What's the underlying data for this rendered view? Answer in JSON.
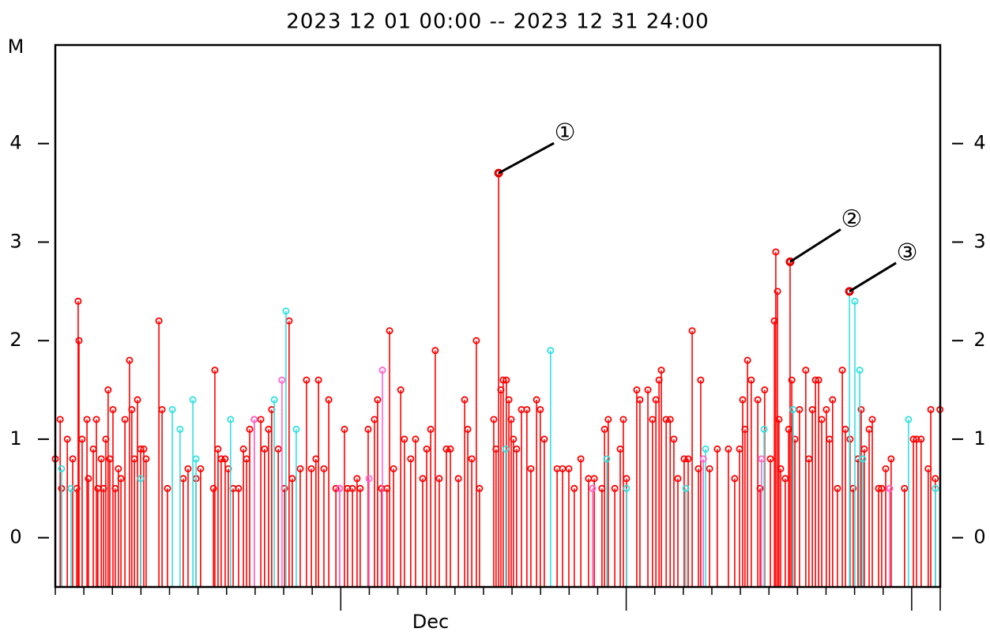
{
  "chart_data": {
    "type": "stem",
    "title": "2023 12 01 00:00 -- 2023 12 31 24:00",
    "y_label": "M",
    "x_label": "Dec",
    "xlim": [
      0,
      31
    ],
    "xticks": [
      0,
      1,
      2,
      3,
      4,
      5,
      6,
      7,
      8,
      9,
      10,
      11,
      12,
      13,
      14,
      15,
      16,
      17,
      18,
      19,
      20,
      21,
      22,
      23,
      24,
      25,
      26,
      27,
      28,
      29,
      30,
      31
    ],
    "ylim": [
      -0.5,
      5
    ],
    "yticks": [
      0,
      1,
      2,
      3,
      4
    ],
    "right_axis": true,
    "series": [
      {
        "color": "#ff0000",
        "x": [
          0.0,
          0.17,
          0.22,
          0.42,
          0.61,
          0.75,
          0.8,
          0.83,
          0.94,
          1.11,
          1.16,
          1.33,
          1.44,
          1.49,
          1.61,
          1.69,
          1.77,
          1.85,
          1.91,
          2.02,
          2.1,
          2.21,
          2.3,
          2.44,
          2.6,
          2.68,
          2.77,
          2.88,
          2.99,
          3.1,
          3.18,
          3.63,
          3.74,
          3.93,
          4.48,
          4.65,
          4.93,
          5.09,
          5.54,
          5.59,
          5.7,
          5.81,
          5.95,
          6.06,
          6.23,
          6.42,
          6.59,
          6.7,
          6.81,
          6.97,
          7.2,
          7.33,
          7.47,
          7.58,
          7.81,
          8.03,
          8.19,
          8.3,
          8.58,
          8.8,
          8.97,
          9.13,
          9.22,
          9.41,
          9.58,
          9.83,
          9.96,
          10.13,
          10.24,
          10.41,
          10.57,
          10.68,
          10.96,
          11.18,
          11.29,
          11.43,
          11.62,
          11.71,
          11.85,
          12.1,
          12.23,
          12.45,
          12.62,
          12.87,
          13.01,
          13.15,
          13.31,
          13.45,
          13.7,
          13.84,
          14.12,
          14.34,
          14.45,
          14.59,
          14.75,
          14.86,
          15.36,
          15.44,
          15.53,
          15.61,
          15.69,
          15.8,
          15.89,
          15.97,
          16.05,
          16.16,
          16.33,
          16.52,
          16.66,
          16.86,
          16.99,
          17.13,
          17.58,
          17.77,
          17.99,
          18.18,
          18.41,
          18.68,
          18.88,
          19.15,
          19.24,
          19.37,
          19.6,
          19.79,
          19.9,
          20.01,
          20.37,
          20.48,
          20.76,
          20.92,
          21.04,
          21.15,
          21.23,
          21.4,
          21.54,
          21.67,
          21.81,
          22.03,
          22.17,
          22.31,
          22.53,
          22.61,
          22.92,
          23.19,
          23.58,
          23.8,
          23.97,
          24.08,
          24.16,
          24.25,
          24.38,
          24.61,
          24.69,
          24.85,
          25.05,
          25.19,
          25.24,
          25.3,
          25.35,
          25.41,
          25.57,
          25.69,
          25.74,
          25.8,
          25.91,
          26.07,
          26.29,
          26.4,
          26.52,
          26.63,
          26.74,
          26.85,
          27.01,
          27.12,
          27.23,
          27.4,
          27.57,
          27.68,
          27.84,
          27.95,
          28.12,
          28.23,
          28.34,
          28.51,
          28.62,
          28.84,
          28.95,
          29.09,
          29.28,
          29.75,
          30.06,
          30.17,
          30.33,
          30.58,
          30.67,
          30.83,
          30.99
        ],
        "values": [
          0.8,
          1.2,
          0.5,
          1.0,
          0.8,
          0.5,
          2.4,
          2.0,
          1.0,
          1.2,
          0.6,
          0.9,
          1.2,
          0.5,
          0.8,
          0.5,
          1.0,
          1.5,
          0.8,
          1.3,
          0.5,
          0.7,
          0.6,
          1.2,
          1.8,
          1.3,
          0.8,
          1.4,
          0.9,
          0.9,
          0.8,
          2.2,
          1.3,
          0.5,
          0.6,
          0.7,
          0.6,
          0.7,
          0.5,
          1.7,
          0.9,
          0.8,
          0.8,
          0.7,
          0.5,
          0.5,
          0.9,
          0.8,
          1.1,
          1.2,
          1.2,
          0.9,
          1.1,
          1.3,
          0.9,
          0.5,
          2.2,
          0.6,
          0.7,
          1.6,
          0.7,
          0.8,
          1.6,
          0.7,
          1.4,
          0.5,
          0.5,
          1.1,
          0.5,
          0.5,
          0.6,
          0.5,
          1.1,
          1.2,
          1.4,
          0.5,
          0.5,
          2.1,
          0.7,
          1.5,
          1.0,
          0.8,
          1.0,
          0.6,
          0.9,
          1.1,
          1.9,
          0.6,
          0.9,
          0.9,
          0.6,
          1.4,
          1.1,
          0.8,
          2.0,
          0.5,
          1.2,
          0.9,
          3.7,
          1.5,
          1.6,
          1.6,
          1.4,
          1.2,
          1.0,
          0.9,
          1.3,
          1.3,
          0.7,
          1.4,
          1.3,
          1.0,
          0.7,
          0.7,
          0.7,
          0.5,
          0.8,
          0.6,
          0.6,
          0.5,
          1.1,
          1.2,
          0.5,
          0.9,
          1.2,
          0.6,
          1.5,
          1.4,
          1.5,
          1.2,
          1.4,
          1.6,
          1.7,
          1.2,
          1.2,
          1.0,
          0.6,
          0.8,
          0.8,
          2.1,
          0.7,
          1.6,
          0.7,
          0.9,
          0.9,
          0.6,
          0.9,
          1.4,
          1.1,
          1.8,
          1.6,
          1.4,
          0.5,
          1.5,
          0.8,
          2.2,
          2.9,
          2.5,
          1.2,
          0.7,
          0.6,
          1.1,
          2.8,
          1.6,
          1.0,
          1.3,
          1.7,
          0.8,
          1.3,
          1.6,
          1.6,
          1.2,
          1.3,
          1.0,
          1.4,
          0.5,
          1.7,
          1.1,
          1.0,
          0.5,
          0.8,
          1.3,
          0.9,
          1.1,
          1.2,
          0.5,
          0.5,
          0.7,
          0.8,
          0.5,
          1.0,
          1.0,
          1.0,
          0.7,
          1.3,
          0.6,
          1.3
        ]
      },
      {
        "color": "#33e0e0",
        "x": [
          0.22,
          0.55,
          2.99,
          4.1,
          4.37,
          4.82,
          4.93,
          6.14,
          7.67,
          8.08,
          8.44,
          15.78,
          17.35,
          19.32,
          20.01,
          22.09,
          22.78,
          24.83,
          25.85,
          27.82,
          28.01,
          28.18,
          28.29,
          29.89,
          30.83
        ],
        "values": [
          0.7,
          0.5,
          0.6,
          1.3,
          1.1,
          1.4,
          0.8,
          1.2,
          1.4,
          2.3,
          1.1,
          0.9,
          1.9,
          0.8,
          0.5,
          0.5,
          0.9,
          1.1,
          1.3,
          2.5,
          2.4,
          1.7,
          0.8,
          1.2,
          0.5
        ]
      },
      {
        "color": "#ff66cc",
        "x": [
          6.97,
          7.94,
          9.96,
          10.99,
          11.46,
          18.82,
          22.7,
          24.74,
          29.23
        ],
        "values": [
          1.2,
          1.6,
          0.5,
          0.6,
          1.7,
          0.5,
          0.8,
          0.8,
          0.5
        ]
      }
    ],
    "annotations": [
      {
        "text": "①",
        "x": 15.53,
        "y": 3.7
      },
      {
        "text": "②",
        "x": 25.74,
        "y": 2.8
      },
      {
        "text": "③",
        "x": 27.82,
        "y": 2.5
      }
    ]
  }
}
